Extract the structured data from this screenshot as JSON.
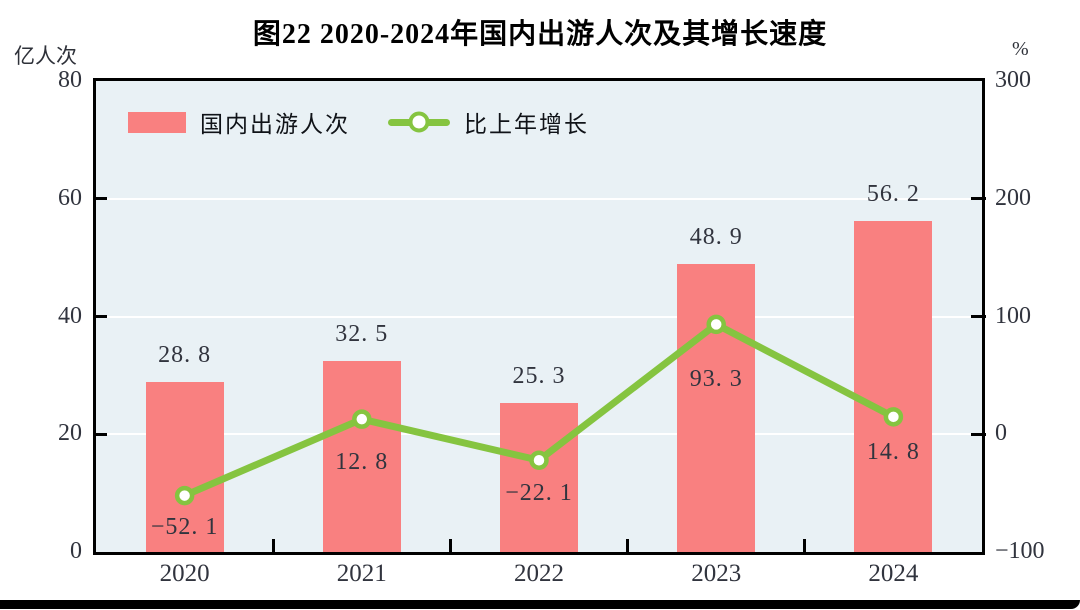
{
  "title": "图22  2020-2024年国内出游人次及其增长速度",
  "left_axis": {
    "unit": "亿人次",
    "ticks": [
      "80",
      "60",
      "40",
      "20",
      "0"
    ]
  },
  "right_axis": {
    "unit": "%",
    "ticks": [
      "300",
      "200",
      "100",
      "0",
      "-100"
    ]
  },
  "legend": [
    {
      "label": "国内出游人次",
      "type": "bar"
    },
    {
      "label": "比上年增长",
      "type": "line"
    }
  ],
  "colors": {
    "bar": "#F98080",
    "line": "#85C440",
    "marker_fill": "#FFFFFF",
    "plot_background": "#E9F1F5",
    "gridline": "#FFFFFF",
    "axis_border": "#000000",
    "text": "#31343E"
  },
  "chart_data": {
    "type": "bar+line",
    "title": "图22  2020-2024年国内出游人次及其增长速度",
    "categories": [
      "2020",
      "2021",
      "2022",
      "2023",
      "2024"
    ],
    "series": [
      {
        "name": "国内出游人次",
        "type": "bar",
        "axis": "left",
        "unit": "亿人次",
        "values": [
          28.8,
          32.5,
          25.3,
          48.9,
          56.2
        ],
        "labels": [
          "28. 8",
          "32. 5",
          "25. 3",
          "48. 9",
          "56. 2"
        ]
      },
      {
        "name": "比上年增长",
        "type": "line",
        "axis": "right",
        "unit": "%",
        "values": [
          -52.1,
          12.8,
          -22.1,
          93.3,
          14.8
        ],
        "labels": [
          "−52. 1",
          "12. 8",
          "−22. 1",
          "93. 3",
          "14. 8"
        ]
      }
    ],
    "left_ylim": [
      0,
      80
    ],
    "left_tick_step": 20,
    "right_ylim": [
      -100,
      300
    ],
    "right_tick_step": 100,
    "grid": "horizontal white gridlines at left-axis 20/40/60",
    "legend_position": "top-left inside plot"
  }
}
